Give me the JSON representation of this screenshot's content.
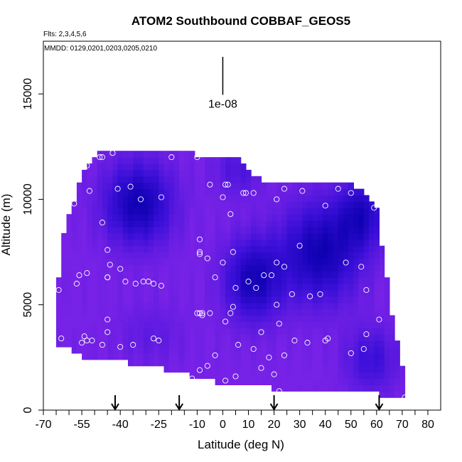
{
  "chart_data": {
    "type": "heatmap",
    "title": "ATOM2 Southbound COBBAF_GEOS5",
    "flights_label": "Flts: 2,3,4,5,6",
    "dates_label": "MMDD: 0129,0201,0203,0205,0210",
    "xlabel": "Latitude (deg N)",
    "ylabel": "Altitude (m)",
    "xlim": [
      -70,
      85
    ],
    "ylim": [
      0,
      17500
    ],
    "x_ticks": [
      -70,
      -55,
      -40,
      -25,
      -10,
      0,
      10,
      20,
      30,
      40,
      50,
      60,
      70,
      80
    ],
    "x_ticks_minor": [
      -65,
      -60,
      -50,
      -45,
      -35,
      -30,
      -20,
      -15,
      -5,
      5,
      15,
      25,
      35,
      45,
      55,
      65,
      75
    ],
    "y_ticks": [
      0,
      5000,
      10000,
      15000
    ],
    "scale_bar_label": "1e-08",
    "scale_bar": {
      "x": 0,
      "y_bottom": 15700,
      "y_top": 17500
    },
    "arrow_latitudes": [
      -42,
      -17,
      20,
      61
    ],
    "colors": {
      "low": "#7722e6",
      "mid": "#3a0fd8",
      "high": "#0d00b0",
      "point_stroke": "#ffffff"
    },
    "envelope": [
      {
        "lat": -65,
        "bottom": 3000,
        "top": 5000
      },
      {
        "lat": -62,
        "bottom": 2900,
        "top": 8500
      },
      {
        "lat": -58,
        "bottom": 2800,
        "top": 10000
      },
      {
        "lat": -55,
        "bottom": 2500,
        "top": 11200
      },
      {
        "lat": -52,
        "bottom": 2500,
        "top": 11800
      },
      {
        "lat": -48,
        "bottom": 2400,
        "top": 12400
      },
      {
        "lat": -40,
        "bottom": 2400,
        "top": 12400
      },
      {
        "lat": -32,
        "bottom": 2000,
        "top": 12400
      },
      {
        "lat": -26,
        "bottom": 2000,
        "top": 12400
      },
      {
        "lat": -18,
        "bottom": 1800,
        "top": 12400
      },
      {
        "lat": -10,
        "bottom": 1500,
        "top": 12100
      },
      {
        "lat": -5,
        "bottom": 1500,
        "top": 12000
      },
      {
        "lat": 0,
        "bottom": 1200,
        "top": 12000
      },
      {
        "lat": 5,
        "bottom": 1200,
        "top": 12000
      },
      {
        "lat": 9,
        "bottom": 1200,
        "top": 11500
      },
      {
        "lat": 14,
        "bottom": 1200,
        "top": 11000
      },
      {
        "lat": 20,
        "bottom": 1000,
        "top": 10800
      },
      {
        "lat": 25,
        "bottom": 1000,
        "top": 10800
      },
      {
        "lat": 30,
        "bottom": 1000,
        "top": 10800
      },
      {
        "lat": 40,
        "bottom": 1000,
        "top": 10800
      },
      {
        "lat": 50,
        "bottom": 900,
        "top": 10800
      },
      {
        "lat": 55,
        "bottom": 900,
        "top": 10400
      },
      {
        "lat": 60,
        "bottom": 800,
        "top": 9700
      },
      {
        "lat": 63,
        "bottom": 700,
        "top": 7000
      },
      {
        "lat": 66,
        "bottom": 600,
        "top": 4500
      },
      {
        "lat": 68,
        "bottom": 500,
        "top": 3200
      },
      {
        "lat": 71,
        "bottom": 500,
        "top": 1500
      }
    ],
    "concentration_features": [
      {
        "lat": -33,
        "alt": 9800,
        "spread_lat": 13,
        "spread_alt": 1900,
        "amplitude": 0.95
      },
      {
        "lat": 12,
        "alt": 6200,
        "spread_lat": 11,
        "spread_alt": 1900,
        "amplitude": 0.9
      },
      {
        "lat": 38,
        "alt": 7500,
        "spread_lat": 15,
        "spread_alt": 2300,
        "amplitude": 0.95
      },
      {
        "lat": 54,
        "alt": 9300,
        "spread_lat": 9,
        "spread_alt": 1600,
        "amplitude": 0.75
      },
      {
        "lat": 58,
        "alt": 2400,
        "spread_lat": 10,
        "spread_alt": 1500,
        "amplitude": 0.5
      },
      {
        "lat": 6,
        "alt": 11400,
        "spread_lat": 9,
        "spread_alt": 1200,
        "amplitude": 0.35
      },
      {
        "lat": -28,
        "alt": 3600,
        "spread_lat": 13,
        "spread_alt": 1400,
        "amplitude": 0.2
      }
    ],
    "points": [
      [
        -63,
        3400
      ],
      [
        -64,
        5700
      ],
      [
        -55,
        3200
      ],
      [
        -54,
        3500
      ],
      [
        -53,
        3300
      ],
      [
        -51,
        3300
      ],
      [
        -47,
        3100
      ],
      [
        -45,
        3700
      ],
      [
        -45,
        4300
      ],
      [
        -40,
        3000
      ],
      [
        -35,
        3100
      ],
      [
        -27,
        3400
      ],
      [
        -25,
        3300
      ],
      [
        -57,
        6000
      ],
      [
        -56,
        6400
      ],
      [
        -53,
        6500
      ],
      [
        -45,
        6300
      ],
      [
        -45,
        6300
      ],
      [
        -44,
        6900
      ],
      [
        -40,
        6700
      ],
      [
        -38,
        6100
      ],
      [
        -34,
        6000
      ],
      [
        -31,
        6100
      ],
      [
        -29,
        6100
      ],
      [
        -27,
        6000
      ],
      [
        -24,
        5900
      ],
      [
        -45,
        7600
      ],
      [
        -47,
        8900
      ],
      [
        -52,
        10400
      ],
      [
        -58,
        9800
      ],
      [
        -53,
        11600
      ],
      [
        -48,
        12000
      ],
      [
        -47,
        12000
      ],
      [
        -43,
        12200
      ],
      [
        -41,
        10500
      ],
      [
        -36,
        10600
      ],
      [
        -32,
        10000
      ],
      [
        -24,
        10100
      ],
      [
        -20,
        12000
      ],
      [
        -10,
        12000
      ],
      [
        -5,
        10700
      ],
      [
        0,
        10100
      ],
      [
        1,
        10700
      ],
      [
        2,
        10700
      ],
      [
        3,
        9300
      ],
      [
        8,
        10300
      ],
      [
        9,
        10300
      ],
      [
        12,
        10300
      ],
      [
        21,
        10000
      ],
      [
        24,
        10500
      ],
      [
        31,
        10400
      ],
      [
        40,
        9700
      ],
      [
        45,
        10500
      ],
      [
        50,
        10300
      ],
      [
        59,
        9600
      ],
      [
        -9,
        8100
      ],
      [
        -9,
        7400
      ],
      [
        -9,
        7500
      ],
      [
        -6,
        7200
      ],
      [
        -3,
        6300
      ],
      [
        0,
        7000
      ],
      [
        4,
        7500
      ],
      [
        5,
        5800
      ],
      [
        10,
        6100
      ],
      [
        13,
        5800
      ],
      [
        16,
        6400
      ],
      [
        19,
        6400
      ],
      [
        21,
        5000
      ],
      [
        21,
        7000
      ],
      [
        24,
        6800
      ],
      [
        27,
        5500
      ],
      [
        30,
        7800
      ],
      [
        34,
        5400
      ],
      [
        38,
        5500
      ],
      [
        41,
        3400
      ],
      [
        48,
        7000
      ],
      [
        54,
        6800
      ],
      [
        56,
        5700
      ],
      [
        4,
        4900
      ],
      [
        3,
        4600
      ],
      [
        1,
        4200
      ],
      [
        -9,
        4600
      ],
      [
        -8,
        4600
      ],
      [
        -8,
        4500
      ],
      [
        -10,
        4600
      ],
      [
        -5,
        4600
      ],
      [
        15,
        3700
      ],
      [
        22,
        4100
      ],
      [
        33,
        3200
      ],
      [
        40,
        3300
      ],
      [
        28,
        3300
      ],
      [
        24,
        2600
      ],
      [
        18,
        2500
      ],
      [
        12,
        2900
      ],
      [
        6,
        3100
      ],
      [
        -3,
        2600
      ],
      [
        -6,
        2100
      ],
      [
        -9,
        1900
      ],
      [
        -12,
        1500
      ],
      [
        -15,
        1400
      ],
      [
        -9,
        1300
      ],
      [
        1,
        1400
      ],
      [
        5,
        1600
      ],
      [
        15,
        2000
      ],
      [
        20,
        1700
      ],
      [
        22,
        900
      ],
      [
        50,
        2700
      ],
      [
        55,
        2900
      ],
      [
        56,
        3600
      ],
      [
        61,
        4300
      ],
      [
        71,
        600
      ]
    ]
  }
}
